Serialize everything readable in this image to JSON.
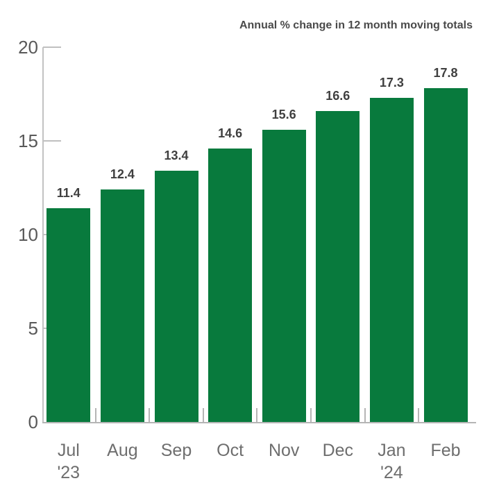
{
  "chart_data": {
    "type": "bar",
    "title": "Annual % change in 12 month moving totals",
    "categories": [
      {
        "month": "Jul",
        "year": "'23"
      },
      {
        "month": "Aug",
        "year": ""
      },
      {
        "month": "Sep",
        "year": ""
      },
      {
        "month": "Oct",
        "year": ""
      },
      {
        "month": "Nov",
        "year": ""
      },
      {
        "month": "Dec",
        "year": ""
      },
      {
        "month": "Jan",
        "year": "'24"
      },
      {
        "month": "Feb",
        "year": ""
      }
    ],
    "values": [
      11.4,
      12.4,
      13.4,
      14.6,
      15.6,
      16.6,
      17.3,
      17.8
    ],
    "value_labels": [
      "11.4",
      "12.4",
      "13.4",
      "14.6",
      "15.6",
      "16.6",
      "17.3",
      "17.8"
    ],
    "xlabel": "",
    "ylabel": "",
    "ylim": [
      0,
      20
    ],
    "yticks": [
      0,
      5,
      10,
      15,
      20
    ],
    "grid": false,
    "legend": "none",
    "colors": {
      "bar": "#087a3d",
      "title": "#4a4a4a",
      "value_label": "#3f3f3f",
      "y_tick_label": "#595959",
      "x_tick_label": "#6e6e6e",
      "axis": "#bfbfbf"
    }
  }
}
